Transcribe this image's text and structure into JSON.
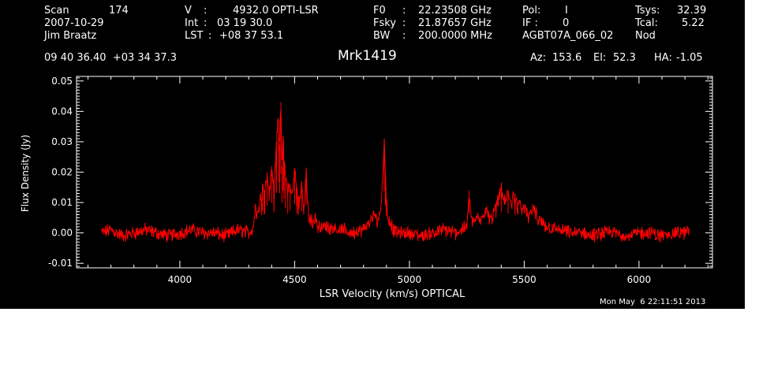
{
  "header": {
    "scan_label": "Scan",
    "scan_value": "174",
    "date": "2007-10-29",
    "observer": "Jim Braatz",
    "v_label": "V",
    "v_value": "4932.0 OPTI-LSR",
    "int_label": "Int",
    "int_value": "03 19 30.0",
    "lst_label": "LST",
    "lst_value": "+08 37 53.1",
    "f0_label": "F0",
    "f0_value": "22.23508 GHz",
    "fsky_label": "Fsky",
    "fsky_value": "21.87657 GHz",
    "bw_label": "BW",
    "bw_value": "200.0000 MHz",
    "pol_label": "Pol:",
    "pol_value": "I",
    "if_label": "IF :",
    "if_value": "0",
    "project": "AGBT07A_066_02",
    "tsys_label": "Tsys:",
    "tsys_value": "32.39",
    "tcal_label": "Tcal:",
    "tcal_value": "5.22",
    "mode": "Nod",
    "coords": "09 40 36.40  +03 34 37.3",
    "source": "Mrk1419",
    "az_label": "Az:",
    "az_value": "153.6",
    "el_label": "El:",
    "el_value": "52.3",
    "ha_label": "HA:",
    "ha_value": "-1.05",
    "timestamp": "Mon May  6 22:11:51 2013"
  },
  "chart_data": {
    "type": "line",
    "xlabel": "LSR Velocity (km/s) OPTICAL",
    "ylabel": "Flux Density (Jy)",
    "xlim": [
      3550,
      6320
    ],
    "ylim": [
      -0.0115,
      0.0515
    ],
    "x_ticks": [
      4000,
      4500,
      5000,
      5500,
      6000
    ],
    "x_tick_labels": [
      "4000",
      "4500",
      "5000",
      "5500",
      "6000"
    ],
    "y_ticks": [
      -0.01,
      0.0,
      0.01,
      0.02,
      0.03,
      0.04,
      0.05
    ],
    "y_tick_labels": [
      "-0.01",
      "0.00",
      "0.01",
      "0.02",
      "0.03",
      "0.04",
      "0.05"
    ],
    "grid": false,
    "series": [
      {
        "color": "#ff0000",
        "x": [
          3660,
          3700,
          3750,
          3800,
          3850,
          3900,
          3950,
          4000,
          4050,
          4100,
          4150,
          4200,
          4250,
          4300,
          4320,
          4330,
          4340,
          4350,
          4360,
          4370,
          4380,
          4390,
          4400,
          4410,
          4420,
          4430,
          4435,
          4440,
          4445,
          4450,
          4460,
          4470,
          4480,
          4490,
          4500,
          4510,
          4520,
          4530,
          4540,
          4550,
          4560,
          4570,
          4580,
          4590,
          4600,
          4650,
          4700,
          4750,
          4800,
          4820,
          4840,
          4850,
          4860,
          4870,
          4880,
          4890,
          4895,
          4900,
          4905,
          4910,
          4920,
          4930,
          4950,
          5000,
          5050,
          5100,
          5150,
          5200,
          5250,
          5260,
          5270,
          5280,
          5300,
          5320,
          5340,
          5360,
          5380,
          5390,
          5400,
          5410,
          5420,
          5430,
          5440,
          5450,
          5460,
          5470,
          5480,
          5490,
          5500,
          5520,
          5540,
          5560,
          5580,
          5600,
          5650,
          5700,
          5750,
          5800,
          5850,
          5900,
          5950,
          6000,
          6050,
          6100,
          6150,
          6200,
          6220
        ],
        "y": [
          0.0,
          0.001,
          -0.001,
          0.0,
          0.001,
          0.0,
          -0.001,
          0.0,
          0.001,
          0.0,
          0.0,
          -0.001,
          0.001,
          0.0,
          0.002,
          0.009,
          0.006,
          0.011,
          0.016,
          0.014,
          0.02,
          0.012,
          0.022,
          0.015,
          0.03,
          0.037,
          0.029,
          0.043,
          0.022,
          0.031,
          0.018,
          0.014,
          0.016,
          0.012,
          0.021,
          0.014,
          0.01,
          0.016,
          0.007,
          0.02,
          0.006,
          0.004,
          0.004,
          0.006,
          0.002,
          0.002,
          0.001,
          0.0,
          0.001,
          0.003,
          0.005,
          0.006,
          0.004,
          0.006,
          0.012,
          0.031,
          0.02,
          0.011,
          0.006,
          0.004,
          0.003,
          0.001,
          0.0,
          0.0,
          -0.001,
          0.0,
          0.001,
          0.0,
          0.002,
          0.014,
          0.004,
          0.003,
          0.006,
          0.005,
          0.008,
          0.004,
          0.01,
          0.012,
          0.015,
          0.01,
          0.011,
          0.014,
          0.009,
          0.012,
          0.013,
          0.008,
          0.01,
          0.007,
          0.009,
          0.005,
          0.009,
          0.004,
          0.003,
          0.002,
          0.001,
          0.0,
          0.0,
          -0.001,
          0.0,
          0.0,
          -0.001,
          0.0,
          0.0,
          -0.001,
          0.0,
          0.0,
          0.001
        ]
      }
    ]
  }
}
